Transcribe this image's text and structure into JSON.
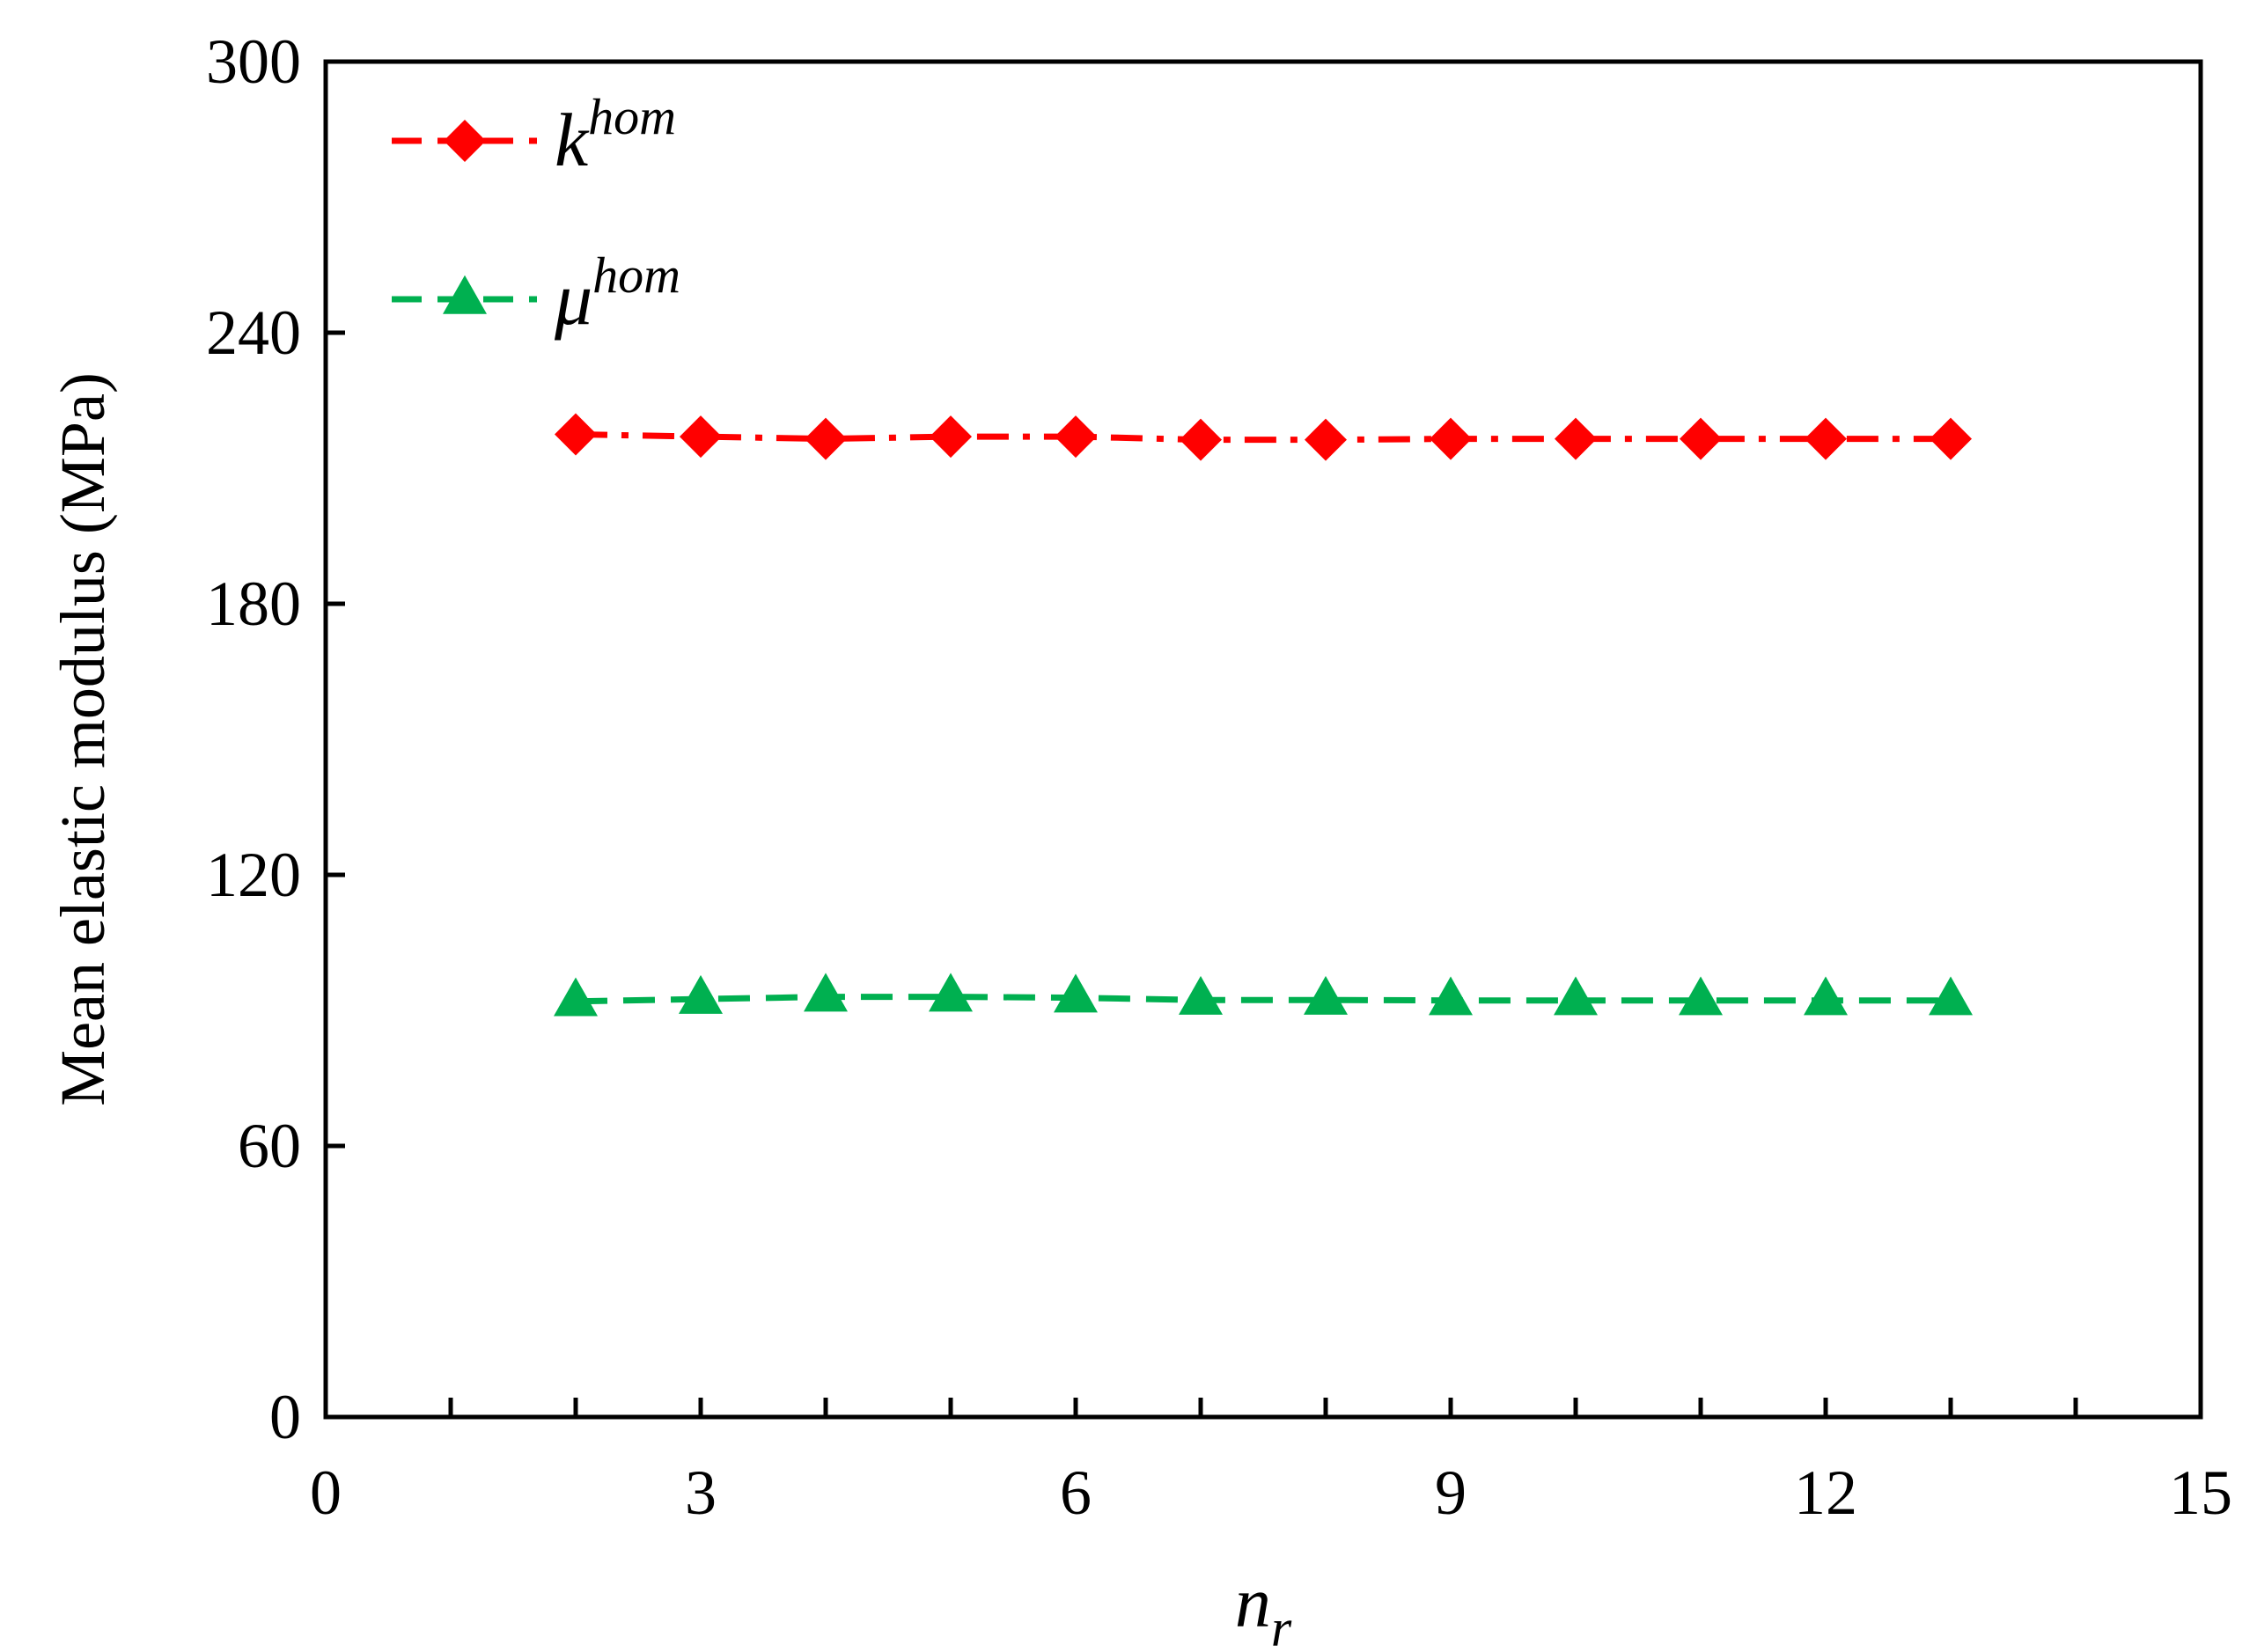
{
  "chart_data": {
    "type": "line",
    "title": "",
    "xlabel": {
      "main": "n",
      "sub": "r"
    },
    "ylabel": "Mean elastic modulus (MPa)",
    "xlim": [
      0,
      15
    ],
    "ylim": [
      0,
      300
    ],
    "x_ticks": [
      0,
      3,
      6,
      9,
      12,
      15
    ],
    "y_ticks": [
      0,
      60,
      120,
      180,
      240,
      300
    ],
    "x_minor_step": 1,
    "grid": false,
    "legend_position": "top-left",
    "x": [
      2,
      3,
      4,
      5,
      6,
      7,
      8,
      9,
      10,
      11,
      12,
      13
    ],
    "series": [
      {
        "name": {
          "main": "k",
          "sup": "hom"
        },
        "marker": "diamond",
        "line_style": "dash-dot",
        "color": "#ff0000",
        "values": [
          217.5,
          217,
          216.5,
          217,
          217,
          216.3,
          216.3,
          216.5,
          216.5,
          216.5,
          216.5,
          216.5
        ]
      },
      {
        "name": {
          "main": "μ",
          "sup": "hom"
        },
        "marker": "triangle",
        "line_style": "dash",
        "color": "#00b050",
        "values": [
          92,
          92.5,
          93,
          93,
          92.8,
          92.3,
          92.3,
          92.2,
          92.2,
          92.2,
          92.2,
          92.2
        ]
      }
    ]
  }
}
